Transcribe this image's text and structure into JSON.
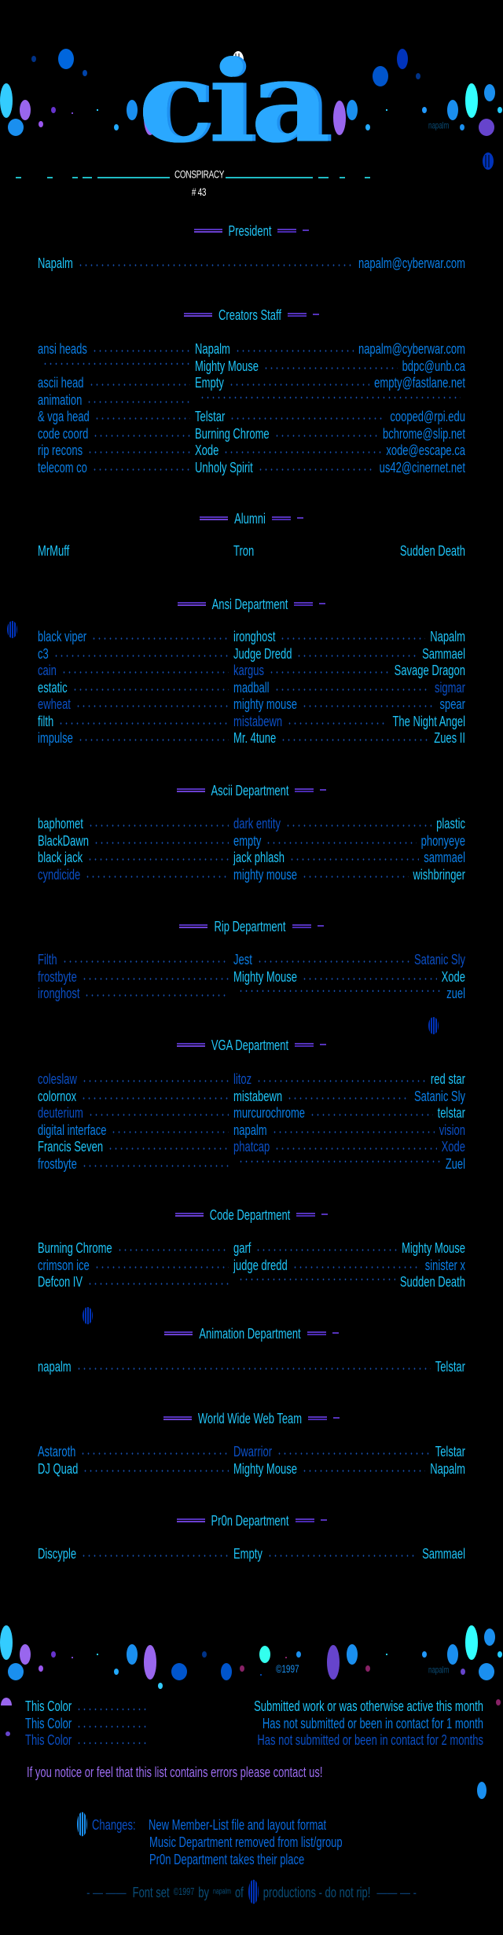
{
  "colors": {
    "A": "#1ec4f8",
    "B": "#0a7fe8",
    "C": "#0b4fc6",
    "header_text": "#22c4f6",
    "divider": "#5533bb",
    "notice": "#9b6cf0",
    "fontset": "#0a4d78"
  },
  "header": {
    "logo_text": "cia",
    "signature": "napalm",
    "issue_label": "CONSPIRACY # 43"
  },
  "sections": [
    {
      "title": "President",
      "kind": "two",
      "rows": [
        {
          "cells": [
            {
              "text": "Napalm",
              "shade": "A"
            },
            {
              "text": "napalm@cyberwar.com",
              "shade": "B"
            }
          ]
        }
      ]
    },
    {
      "title": "Creators Staff",
      "kind": "staff",
      "rows": [
        {
          "cells": [
            {
              "text": "ansi heads",
              "shade": "B"
            },
            {
              "text": "Napalm",
              "shade": "A"
            },
            {
              "text": "napalm@cyberwar.com",
              "shade": "B"
            }
          ]
        },
        {
          "cells": [
            {
              "text": "",
              "shade": "B"
            },
            {
              "text": "Mighty Mouse",
              "shade": "A"
            },
            {
              "text": "bdpc@unb.ca",
              "shade": "B"
            }
          ]
        },
        {
          "cells": [
            {
              "text": "ascii head",
              "shade": "B"
            },
            {
              "text": "Empty",
              "shade": "A"
            },
            {
              "text": "empty@fastlane.net",
              "shade": "B"
            }
          ]
        },
        {
          "cells": [
            {
              "text": "animation",
              "shade": "B"
            },
            {
              "text": "",
              "shade": "A"
            },
            {
              "text": "",
              "shade": "B"
            }
          ]
        },
        {
          "cells": [
            {
              "text": "& vga head",
              "shade": "B"
            },
            {
              "text": "Telstar",
              "shade": "A"
            },
            {
              "text": "cooped@rpi.edu",
              "shade": "B"
            }
          ]
        },
        {
          "cells": [
            {
              "text": "code coord",
              "shade": "B"
            },
            {
              "text": "Burning Chrome",
              "shade": "A"
            },
            {
              "text": "bchrome@slip.net",
              "shade": "B"
            }
          ]
        },
        {
          "cells": [
            {
              "text": "rip recons",
              "shade": "B"
            },
            {
              "text": "Xode",
              "shade": "A"
            },
            {
              "text": "xode@escape.ca",
              "shade": "B"
            }
          ]
        },
        {
          "cells": [
            {
              "text": "telecom co",
              "shade": "B"
            },
            {
              "text": "Unholy Spirit",
              "shade": "A"
            },
            {
              "text": "us42@cinernet.net",
              "shade": "B"
            }
          ]
        }
      ]
    },
    {
      "title": "Alumni",
      "kind": "plain",
      "rows": [
        {
          "cells": [
            {
              "text": "MrMuff",
              "shade": "A"
            },
            {
              "text": "Tron",
              "shade": "A"
            },
            {
              "text": "Sudden Death",
              "shade": "A"
            }
          ]
        }
      ]
    },
    {
      "title": "Ansi Department",
      "kind": "three",
      "rows": [
        {
          "cells": [
            {
              "text": "black viper",
              "shade": "B"
            },
            {
              "text": "ironghost",
              "shade": "A"
            },
            {
              "text": "Napalm",
              "shade": "A"
            }
          ]
        },
        {
          "cells": [
            {
              "text": "c3",
              "shade": "B"
            },
            {
              "text": "Judge Dredd",
              "shade": "A"
            },
            {
              "text": "Sammael",
              "shade": "A"
            }
          ]
        },
        {
          "cells": [
            {
              "text": "cain",
              "shade": "C"
            },
            {
              "text": "kargus",
              "shade": "C"
            },
            {
              "text": "Savage Dragon",
              "shade": "A"
            }
          ]
        },
        {
          "cells": [
            {
              "text": "estatic",
              "shade": "A"
            },
            {
              "text": "madball",
              "shade": "B"
            },
            {
              "text": "sigmar",
              "shade": "C"
            }
          ]
        },
        {
          "cells": [
            {
              "text": "ewheat",
              "shade": "C"
            },
            {
              "text": "mighty mouse",
              "shade": "B"
            },
            {
              "text": "spear",
              "shade": "B"
            }
          ]
        },
        {
          "cells": [
            {
              "text": "filth",
              "shade": "A"
            },
            {
              "text": "mistabewn",
              "shade": "C"
            },
            {
              "text": "The Night Angel",
              "shade": "A"
            }
          ]
        },
        {
          "cells": [
            {
              "text": "impulse",
              "shade": "B"
            },
            {
              "text": "Mr. 4tune",
              "shade": "A"
            },
            {
              "text": "Zues II",
              "shade": "A"
            }
          ]
        }
      ]
    },
    {
      "title": "Ascii Department",
      "kind": "three",
      "rows": [
        {
          "cells": [
            {
              "text": "baphomet",
              "shade": "A"
            },
            {
              "text": "dark entity",
              "shade": "C"
            },
            {
              "text": "plastic",
              "shade": "A"
            }
          ]
        },
        {
          "cells": [
            {
              "text": "BlackDawn",
              "shade": "A"
            },
            {
              "text": "empty",
              "shade": "B"
            },
            {
              "text": "phonyeye",
              "shade": "B"
            }
          ]
        },
        {
          "cells": [
            {
              "text": "black jack",
              "shade": "A"
            },
            {
              "text": "jack phlash",
              "shade": "A"
            },
            {
              "text": "sammael",
              "shade": "B"
            }
          ]
        },
        {
          "cells": [
            {
              "text": "cyndicide",
              "shade": "C"
            },
            {
              "text": "mighty mouse",
              "shade": "B"
            },
            {
              "text": "wishbringer",
              "shade": "A"
            }
          ]
        }
      ]
    },
    {
      "title": "Rip Department",
      "kind": "three",
      "rows": [
        {
          "cells": [
            {
              "text": "Filth",
              "shade": "C"
            },
            {
              "text": "Jest",
              "shade": "B"
            },
            {
              "text": "Satanic Sly",
              "shade": "C"
            }
          ]
        },
        {
          "cells": [
            {
              "text": "frostbyte",
              "shade": "C"
            },
            {
              "text": "Mighty Mouse",
              "shade": "A"
            },
            {
              "text": "Xode",
              "shade": "A"
            }
          ]
        },
        {
          "cells": [
            {
              "text": "ironghost",
              "shade": "C"
            },
            {
              "text": "",
              "shade": "A"
            },
            {
              "text": "zuel",
              "shade": "B"
            }
          ]
        }
      ]
    },
    {
      "title": "VGA Department",
      "kind": "three",
      "rows": [
        {
          "cells": [
            {
              "text": "coleslaw",
              "shade": "C"
            },
            {
              "text": "litoz",
              "shade": "C"
            },
            {
              "text": "red star",
              "shade": "A"
            }
          ]
        },
        {
          "cells": [
            {
              "text": "colornox",
              "shade": "A"
            },
            {
              "text": "mistabewn",
              "shade": "A"
            },
            {
              "text": "Satanic Sly",
              "shade": "B"
            }
          ]
        },
        {
          "cells": [
            {
              "text": "deuterium",
              "shade": "C"
            },
            {
              "text": "murcurochrome",
              "shade": "B"
            },
            {
              "text": "telstar",
              "shade": "A"
            }
          ]
        },
        {
          "cells": [
            {
              "text": "digital interface",
              "shade": "B"
            },
            {
              "text": "napalm",
              "shade": "B"
            },
            {
              "text": "vision",
              "shade": "C"
            }
          ]
        },
        {
          "cells": [
            {
              "text": "Francis Seven",
              "shade": "A"
            },
            {
              "text": "phatcap",
              "shade": "C"
            },
            {
              "text": "Xode",
              "shade": "C"
            }
          ]
        },
        {
          "cells": [
            {
              "text": "frostbyte",
              "shade": "B"
            },
            {
              "text": "",
              "shade": "A"
            },
            {
              "text": "Zuel",
              "shade": "B"
            }
          ]
        }
      ]
    },
    {
      "title": "Code Department",
      "kind": "three",
      "rows": [
        {
          "cells": [
            {
              "text": "Burning Chrome",
              "shade": "A"
            },
            {
              "text": "garf",
              "shade": "A"
            },
            {
              "text": "Mighty Mouse",
              "shade": "A"
            }
          ]
        },
        {
          "cells": [
            {
              "text": "crimson ice",
              "shade": "B"
            },
            {
              "text": "judge dredd",
              "shade": "A"
            },
            {
              "text": "sinister x",
              "shade": "B"
            }
          ]
        },
        {
          "cells": [
            {
              "text": "Defcon IV",
              "shade": "A"
            },
            {
              "text": "",
              "shade": "A"
            },
            {
              "text": "Sudden Death",
              "shade": "A"
            }
          ]
        }
      ]
    },
    {
      "title": "Animation Department",
      "kind": "two",
      "rows": [
        {
          "cells": [
            {
              "text": "napalm",
              "shade": "A"
            },
            {
              "text": "Telstar",
              "shade": "A"
            }
          ]
        }
      ]
    },
    {
      "title": "World Wide Web Team",
      "kind": "three",
      "rows": [
        {
          "cells": [
            {
              "text": "Astaroth",
              "shade": "B"
            },
            {
              "text": "Dwarrior",
              "shade": "C"
            },
            {
              "text": "Telstar",
              "shade": "A"
            }
          ]
        },
        {
          "cells": [
            {
              "text": "DJ Quad",
              "shade": "A"
            },
            {
              "text": "Mighty Mouse",
              "shade": "A"
            },
            {
              "text": "Napalm",
              "shade": "A"
            }
          ]
        }
      ]
    },
    {
      "title": "Pr0n Department",
      "kind": "three",
      "rows": [
        {
          "cells": [
            {
              "text": "Discyple",
              "shade": "A"
            },
            {
              "text": "Empty",
              "shade": "A"
            },
            {
              "text": "Sammael",
              "shade": "A"
            }
          ]
        }
      ]
    }
  ],
  "footer": {
    "copyright": "©1997",
    "signature": "napalm",
    "legend": [
      {
        "label": "This Color",
        "shade": "A",
        "description": "Submitted work or was otherwise active this month"
      },
      {
        "label": "This Color",
        "shade": "B",
        "description": "Has not submitted or been in contact for 1 month"
      },
      {
        "label": "This Color",
        "shade": "C",
        "description": "Has not submitted or been in contact for 2 months"
      }
    ],
    "notice": "If you notice or feel that this list contains errors please contact us!",
    "changes_label": "Changes:",
    "changes": [
      "New Member-List file and layout format",
      "Music Department removed from list/group",
      "Pr0n Department takes their place"
    ],
    "fontset": {
      "prefix": "Font set",
      "copyright": "©1997",
      "by": "by",
      "author": "napalm",
      "of": "of",
      "suffix": "productions - do not rip!"
    }
  }
}
